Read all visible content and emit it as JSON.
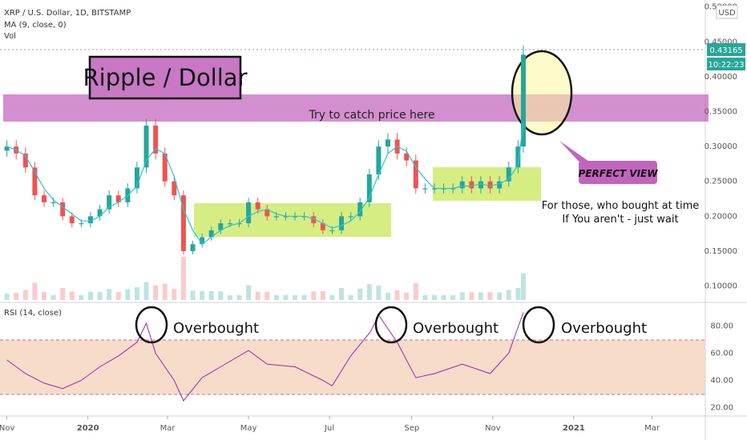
{
  "chart_data": {
    "type": "candlestick",
    "title": "XRP / U.S. Dollar, 1D, BITSTAMP",
    "indicators": [
      "MA (9, close, 0)",
      "Vol"
    ],
    "currency": "USD",
    "x_ticks": [
      "Nov",
      "2020",
      "Mar",
      "May",
      "Jul",
      "Sep",
      "Nov",
      "2021",
      "Mar"
    ],
    "price_axis": {
      "ticks": [
        "0.10000",
        "0.15000",
        "0.20000",
        "0.25000",
        "0.30000",
        "0.35000",
        "0.40000",
        "0.45000",
        "0.50000"
      ],
      "range": [
        0.08,
        0.51
      ],
      "current_price": "0.43165",
      "countdown": "10:22:23"
    },
    "colors": {
      "up": "#26a69a",
      "down": "#ef5350",
      "ma": "#26c6da",
      "rsi": "#9c27b0",
      "band": "#c264bd",
      "range_box": "#cce864",
      "ellipse_fill": "#fff59d",
      "rsi_band": "#f7dcc9",
      "price_badge": "#26a69a"
    },
    "price_series": [
      {
        "date": "2019-11-01",
        "close": 0.3
      },
      {
        "date": "2019-11-08",
        "close": 0.29
      },
      {
        "date": "2019-11-15",
        "close": 0.27
      },
      {
        "date": "2019-11-22",
        "close": 0.23
      },
      {
        "date": "2019-11-29",
        "close": 0.22
      },
      {
        "date": "2019-12-06",
        "close": 0.22
      },
      {
        "date": "2019-12-13",
        "close": 0.2
      },
      {
        "date": "2019-12-20",
        "close": 0.19
      },
      {
        "date": "2019-12-27",
        "close": 0.19
      },
      {
        "date": "2020-01-03",
        "close": 0.2
      },
      {
        "date": "2020-01-10",
        "close": 0.21
      },
      {
        "date": "2020-01-17",
        "close": 0.23
      },
      {
        "date": "2020-01-24",
        "close": 0.22
      },
      {
        "date": "2020-01-31",
        "close": 0.24
      },
      {
        "date": "2020-02-07",
        "close": 0.27
      },
      {
        "date": "2020-02-14",
        "close": 0.33
      },
      {
        "date": "2020-02-21",
        "close": 0.29
      },
      {
        "date": "2020-02-28",
        "close": 0.25
      },
      {
        "date": "2020-03-06",
        "close": 0.23
      },
      {
        "date": "2020-03-13",
        "close": 0.15
      },
      {
        "date": "2020-03-20",
        "close": 0.16
      },
      {
        "date": "2020-03-27",
        "close": 0.17
      },
      {
        "date": "2020-04-03",
        "close": 0.18
      },
      {
        "date": "2020-04-10",
        "close": 0.19
      },
      {
        "date": "2020-04-17",
        "close": 0.19
      },
      {
        "date": "2020-04-24",
        "close": 0.19
      },
      {
        "date": "2020-05-01",
        "close": 0.22
      },
      {
        "date": "2020-05-08",
        "close": 0.21
      },
      {
        "date": "2020-05-15",
        "close": 0.2
      },
      {
        "date": "2020-05-22",
        "close": 0.2
      },
      {
        "date": "2020-05-29",
        "close": 0.2
      },
      {
        "date": "2020-06-05",
        "close": 0.2
      },
      {
        "date": "2020-06-12",
        "close": 0.2
      },
      {
        "date": "2020-06-19",
        "close": 0.19
      },
      {
        "date": "2020-06-26",
        "close": 0.18
      },
      {
        "date": "2020-07-03",
        "close": 0.18
      },
      {
        "date": "2020-07-10",
        "close": 0.2
      },
      {
        "date": "2020-07-17",
        "close": 0.2
      },
      {
        "date": "2020-07-24",
        "close": 0.22
      },
      {
        "date": "2020-07-31",
        "close": 0.26
      },
      {
        "date": "2020-08-07",
        "close": 0.3
      },
      {
        "date": "2020-08-14",
        "close": 0.31
      },
      {
        "date": "2020-08-21",
        "close": 0.29
      },
      {
        "date": "2020-08-28",
        "close": 0.28
      },
      {
        "date": "2020-09-04",
        "close": 0.24
      },
      {
        "date": "2020-09-11",
        "close": 0.24
      },
      {
        "date": "2020-09-18",
        "close": 0.24
      },
      {
        "date": "2020-09-25",
        "close": 0.24
      },
      {
        "date": "2020-10-02",
        "close": 0.24
      },
      {
        "date": "2020-10-09",
        "close": 0.25
      },
      {
        "date": "2020-10-16",
        "close": 0.24
      },
      {
        "date": "2020-10-23",
        "close": 0.25
      },
      {
        "date": "2020-10-30",
        "close": 0.24
      },
      {
        "date": "2020-11-06",
        "close": 0.25
      },
      {
        "date": "2020-11-13",
        "close": 0.27
      },
      {
        "date": "2020-11-20",
        "close": 0.3
      },
      {
        "date": "2020-11-24",
        "close": 0.43165
      }
    ],
    "rsi": {
      "label": "RSI (14, close)",
      "ticks": [
        "20.00",
        "40.00",
        "60.00",
        "80.00"
      ],
      "range": [
        15,
        95
      ],
      "overbought": 70,
      "oversold": 30,
      "series": [
        {
          "date": "2019-11-01",
          "value": 55
        },
        {
          "date": "2019-11-15",
          "value": 45
        },
        {
          "date": "2019-11-29",
          "value": 38
        },
        {
          "date": "2019-12-13",
          "value": 34
        },
        {
          "date": "2019-12-27",
          "value": 40
        },
        {
          "date": "2020-01-10",
          "value": 50
        },
        {
          "date": "2020-01-24",
          "value": 58
        },
        {
          "date": "2020-02-07",
          "value": 68
        },
        {
          "date": "2020-02-14",
          "value": 82
        },
        {
          "date": "2020-02-21",
          "value": 60
        },
        {
          "date": "2020-03-06",
          "value": 40
        },
        {
          "date": "2020-03-13",
          "value": 25
        },
        {
          "date": "2020-03-27",
          "value": 42
        },
        {
          "date": "2020-04-10",
          "value": 50
        },
        {
          "date": "2020-05-01",
          "value": 62
        },
        {
          "date": "2020-05-15",
          "value": 52
        },
        {
          "date": "2020-06-05",
          "value": 50
        },
        {
          "date": "2020-06-26",
          "value": 40
        },
        {
          "date": "2020-07-03",
          "value": 36
        },
        {
          "date": "2020-07-17",
          "value": 58
        },
        {
          "date": "2020-08-01",
          "value": 76
        },
        {
          "date": "2020-08-07",
          "value": 88
        },
        {
          "date": "2020-08-21",
          "value": 68
        },
        {
          "date": "2020-09-04",
          "value": 42
        },
        {
          "date": "2020-09-18",
          "value": 45
        },
        {
          "date": "2020-10-09",
          "value": 52
        },
        {
          "date": "2020-10-30",
          "value": 45
        },
        {
          "date": "2020-11-13",
          "value": 60
        },
        {
          "date": "2020-11-24",
          "value": 90
        }
      ]
    }
  },
  "annotations": {
    "title_box": "Ripple / Dollar",
    "band_text": "Try to catch price here",
    "perfect_view": "PERFECT VIEW",
    "note_line1": "For those, who bought at time",
    "note_line2": "If You aren't - just wait",
    "overbought": "Overbought"
  }
}
